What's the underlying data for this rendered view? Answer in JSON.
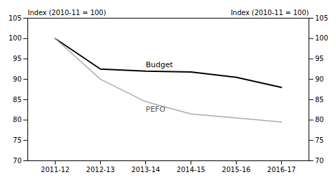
{
  "chart_data": {
    "type": "line",
    "categories": [
      "2011-12",
      "2012-13",
      "2013-14",
      "2014-15",
      "2015-16",
      "2016-17"
    ],
    "series": [
      {
        "name": "Budget",
        "color": "#000000",
        "values": [
          100,
          92.5,
          92.0,
          91.8,
          90.5,
          88.0
        ]
      },
      {
        "name": "PEFO",
        "color": "#aaaaaa",
        "values": [
          100,
          90.0,
          84.5,
          81.5,
          80.5,
          79.5
        ]
      }
    ],
    "ylabel": "Index (2010-11 = 100)",
    "y2label": "Index (2010-11 = 100)",
    "ylim": [
      70,
      105
    ],
    "yticks": [
      70,
      75,
      80,
      85,
      90,
      95,
      100,
      105
    ],
    "y2lim": [
      70,
      105
    ],
    "y2ticks": [
      70,
      75,
      80,
      85,
      90,
      95,
      100,
      105
    ],
    "grid": false
  }
}
